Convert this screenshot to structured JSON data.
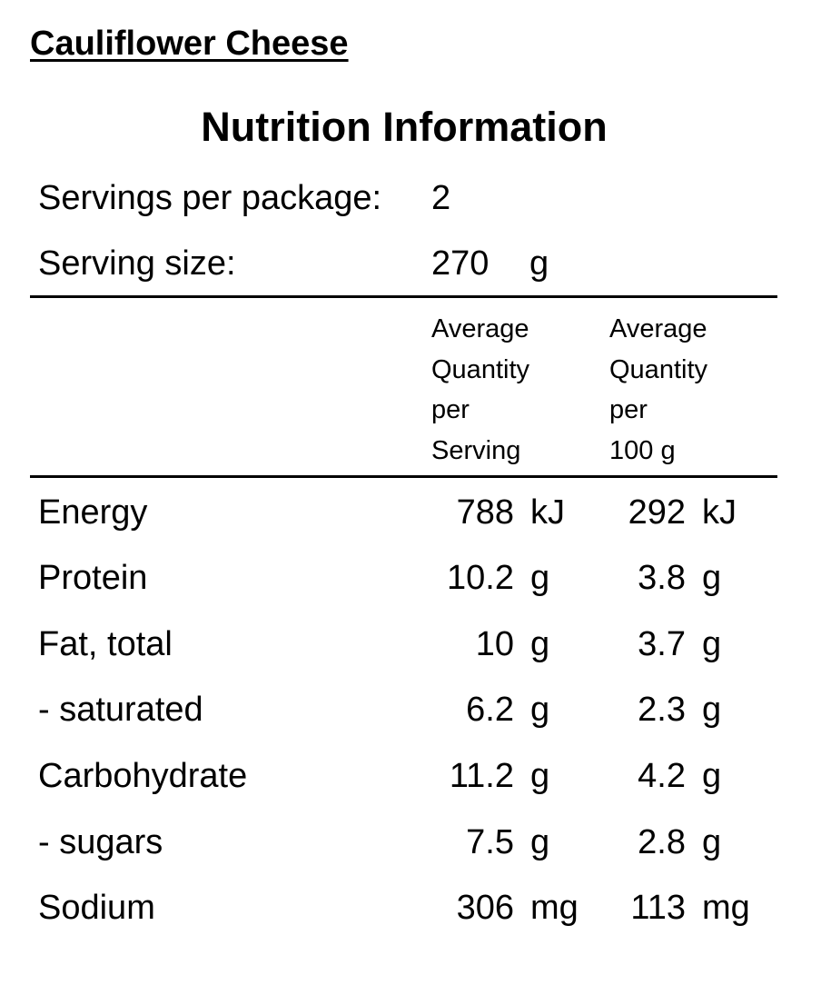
{
  "product": {
    "name": "Cauliflower Cheese"
  },
  "panel": {
    "title": "Nutrition Information",
    "servings_per_package_label": "Servings per package:",
    "servings_per_package_value": "2",
    "serving_size_label": "Serving size:",
    "serving_size_value": "270",
    "serving_size_unit": "g",
    "column_headers": {
      "per_serving": "Average\nQuantity\nper\nServing",
      "per_100g": "Average\nQuantity\nper\n100 g"
    }
  },
  "nutrients": [
    {
      "name": "Energy",
      "per_serving": "788",
      "per_serving_unit": "kJ",
      "per_100g": "292",
      "per_100g_unit": "kJ"
    },
    {
      "name": "Protein",
      "per_serving": "10.2",
      "per_serving_unit": "g",
      "per_100g": "3.8",
      "per_100g_unit": "g"
    },
    {
      "name": "Fat, total",
      "per_serving": "10",
      "per_serving_unit": "g",
      "per_100g": "3.7",
      "per_100g_unit": "g"
    },
    {
      "name": "- saturated",
      "per_serving": "6.2",
      "per_serving_unit": "g",
      "per_100g": "2.3",
      "per_100g_unit": "g"
    },
    {
      "name": "Carbohydrate",
      "per_serving": "11.2",
      "per_serving_unit": "g",
      "per_100g": "4.2",
      "per_100g_unit": "g"
    },
    {
      "name": "- sugars",
      "per_serving": "7.5",
      "per_serving_unit": "g",
      "per_100g": "2.8",
      "per_100g_unit": "g"
    },
    {
      "name": "Sodium",
      "per_serving": "306",
      "per_serving_unit": "mg",
      "per_100g": "113",
      "per_100g_unit": "mg"
    }
  ]
}
